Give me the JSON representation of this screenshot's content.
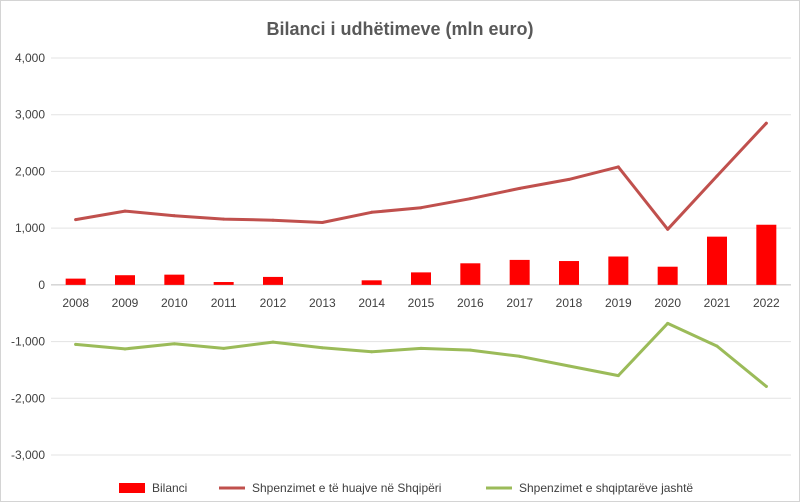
{
  "chart_data": {
    "type": "bar",
    "title": "Bilanci i udhëtimeve (mln euro)",
    "xlabel": "",
    "ylabel": "",
    "categories": [
      "2008",
      "2009",
      "2010",
      "2011",
      "2012",
      "2013",
      "2014",
      "2015",
      "2016",
      "2017",
      "2018",
      "2019",
      "2020",
      "2021",
      "2022"
    ],
    "ylim": [
      -3000,
      4000
    ],
    "yticks": [
      4000,
      3000,
      2000,
      1000,
      0,
      -1000,
      -2000,
      -3000
    ],
    "ytick_labels": [
      "4,000",
      "3,000",
      "2,000",
      "1,000",
      "0",
      "-1,000",
      "-2,000",
      "-3,000"
    ],
    "grid": true,
    "legend_position": "bottom",
    "series": [
      {
        "name": "Bilanci",
        "type": "bar",
        "color": "#ff0000",
        "values": [
          110,
          170,
          180,
          50,
          140,
          0,
          80,
          220,
          380,
          440,
          420,
          500,
          320,
          850,
          1060
        ]
      },
      {
        "name": "Shpenzimet e të huajve në Shqipëri",
        "type": "line",
        "color": "#c0504d",
        "values": [
          1150,
          1300,
          1220,
          1160,
          1140,
          1100,
          1280,
          1360,
          1520,
          1700,
          1860,
          2080,
          980,
          1920,
          2850
        ]
      },
      {
        "name": "Shpenzimet e shqiptarëve jashtë",
        "type": "line",
        "color": "#9bbb59",
        "values": [
          -1050,
          -1130,
          -1040,
          -1120,
          -1010,
          -1110,
          -1180,
          -1120,
          -1150,
          -1260,
          -1430,
          -1600,
          -680,
          -1080,
          -1790
        ]
      }
    ]
  }
}
